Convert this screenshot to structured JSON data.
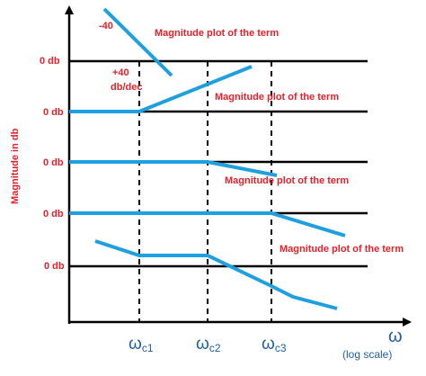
{
  "chart_data": {
    "type": "line",
    "title": "",
    "ylabel": "Magnitude in db",
    "xlabel": "ω",
    "xscale_note": "(log scale)",
    "zero_label": "0 db",
    "x_ticks": [
      {
        "base": "ω",
        "sub": "c1"
      },
      {
        "base": "ω",
        "sub": "c2"
      },
      {
        "base": "ω",
        "sub": "c3"
      }
    ],
    "annotations": [
      {
        "text": "-40"
      },
      {
        "text": "+40"
      },
      {
        "text": "db/dec"
      },
      {
        "text": "Magnitude plot of the term"
      },
      {
        "text": "Magnitude plot of the term"
      },
      {
        "text": "Magnitude plot of the term"
      },
      {
        "text": "Magnitude plot of the term"
      }
    ],
    "panels": 5,
    "line_color": "#1ea0e0",
    "text_color": "#e8202a",
    "axis_label_color": "#1f5fa8"
  }
}
